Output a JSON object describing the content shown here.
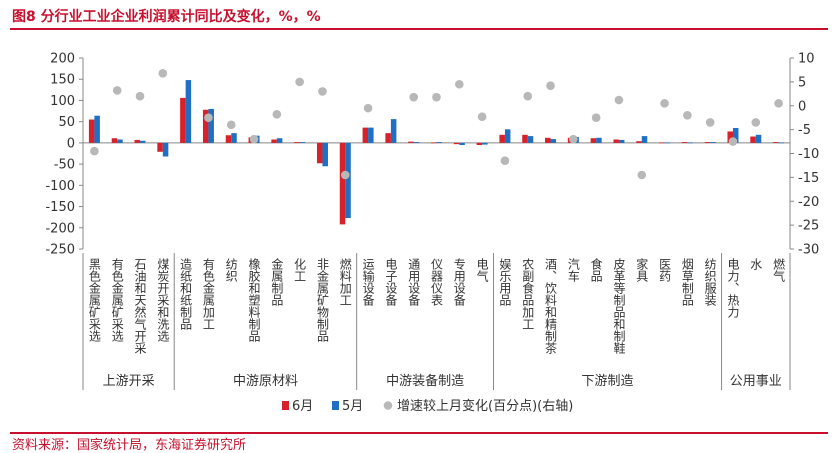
{
  "figure_title": "图8 分行业工业企业利润累计同比及变化，%，%",
  "source_text": "资料来源：国家统计局，东海证券研究所",
  "colors": {
    "june": "#d8222b",
    "may": "#1f6fc2",
    "change": "#b8b8b8",
    "accent": "#c8102e",
    "axis": "#888888",
    "text": "#333333"
  },
  "chart_data": {
    "type": "bar",
    "title": "图8 分行业工业企业利润累计同比及变化，%，%",
    "categories": [
      "黑色金属矿采选",
      "有色金属矿采选",
      "石油和天然气开采",
      "煤炭开采和洗选",
      "造纸和纸制品",
      "有色金属加工",
      "纺织",
      "橡胶和塑料制品",
      "金属制品",
      "化工",
      "非金属矿物制品",
      "燃料加工",
      "运输设备",
      "电子设备",
      "通用设备",
      "仪器仪表",
      "专用设备",
      "电气",
      "娱乐用品",
      "农副食品加工",
      "酒、饮料和精制茶",
      "汽车",
      "食品",
      "皮革等制品和制鞋",
      "家具",
      "医药",
      "烟草制品",
      "纺织服装",
      "电力、热力",
      "水",
      "燃气"
    ],
    "series": [
      {
        "name": "6月",
        "axis": "left",
        "values": [
          55,
          11,
          7,
          -21,
          106,
          78,
          18,
          13,
          8,
          2,
          -48,
          -192,
          36,
          23,
          3,
          1,
          -3,
          -5,
          19,
          19,
          12,
          12,
          11,
          8,
          4,
          1,
          2,
          2,
          27,
          15,
          2
        ]
      },
      {
        "name": "5月",
        "axis": "left",
        "values": [
          64,
          8,
          5,
          -32,
          148,
          80,
          23,
          17,
          11,
          2,
          -55,
          -177,
          36,
          56,
          2,
          2,
          -5,
          -4,
          32,
          16,
          9,
          14,
          12,
          7,
          16,
          1,
          1,
          2,
          35,
          19,
          1
        ]
      },
      {
        "name": "增速较上月变化(百分点)(右轴)",
        "axis": "right",
        "type": "scatter",
        "values": [
          -9.5,
          3.2,
          2.0,
          6.8,
          null,
          -2.5,
          -4.0,
          -7.0,
          -1.8,
          5.0,
          3.0,
          -14.5,
          -0.5,
          null,
          1.8,
          1.8,
          4.5,
          -2.3,
          -11.5,
          2.0,
          4.2,
          -7.0,
          -2.5,
          1.2,
          -14.5,
          0.5,
          -2.0,
          -3.5,
          -7.5,
          -3.5,
          0.5
        ]
      }
    ],
    "ylim_left": [
      -250,
      200
    ],
    "yticks_left": [
      -250,
      -200,
      -150,
      -100,
      -50,
      0,
      50,
      100,
      150,
      200
    ],
    "ylim_right": [
      -30,
      10
    ],
    "yticks_right": [
      -30,
      -25,
      -20,
      -15,
      -10,
      -5,
      0,
      5,
      10
    ],
    "groups": [
      {
        "name": "上游开采",
        "start": 0,
        "end": 3
      },
      {
        "name": "中游原材料",
        "start": 4,
        "end": 11
      },
      {
        "name": "中游装备制造",
        "start": 12,
        "end": 17
      },
      {
        "name": "下游制造",
        "start": 18,
        "end": 27
      },
      {
        "name": "公用事业",
        "start": 28,
        "end": 30
      }
    ],
    "legend": [
      "6月",
      "5月",
      "增速较上月变化(百分点)(右轴)"
    ],
    "legend_position": "bottom",
    "grid": false
  }
}
